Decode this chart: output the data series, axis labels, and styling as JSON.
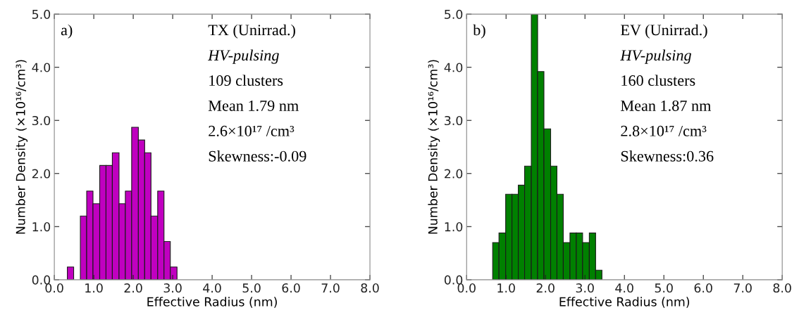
{
  "chart_data": [
    {
      "type": "histogram",
      "xlabel": "Effective Radius (nm)",
      "ylabel": "Number Density (×10¹⁶/cm³)",
      "color": "#c000c0",
      "bins": [
        0.33,
        0.49,
        0.66,
        0.82,
        0.98,
        1.15,
        1.31,
        1.47,
        1.64,
        1.8,
        1.96,
        2.13,
        2.29,
        2.45,
        2.62,
        2.78,
        2.94,
        3.11
      ],
      "values": [
        0.24,
        0,
        1.2,
        1.67,
        1.43,
        2.15,
        2.15,
        2.39,
        1.43,
        1.67,
        2.87,
        2.63,
        2.39,
        1.2,
        1.67,
        0.72,
        0.24
      ],
      "xlim": [
        0,
        8
      ],
      "ylim": [
        0,
        5
      ],
      "xticks": [
        {
          "value": 0,
          "label": "0.0"
        },
        {
          "value": 1,
          "label": "1.0"
        },
        {
          "value": 2,
          "label": "2.0"
        },
        {
          "value": 3,
          "label": "3.0"
        },
        {
          "value": 4,
          "label": "4.0"
        },
        {
          "value": 5,
          "label": "5.0"
        },
        {
          "value": 6,
          "label": "6.0"
        },
        {
          "value": 7,
          "label": "7.0"
        },
        {
          "value": 8,
          "label": "8.0"
        }
      ],
      "yticks": [
        {
          "value": 0,
          "label": "0.0"
        },
        {
          "value": 1,
          "label": "1.0"
        },
        {
          "value": 2,
          "label": "2.0"
        },
        {
          "value": 3,
          "label": "3.0"
        },
        {
          "value": 4,
          "label": "4.0"
        },
        {
          "value": 5,
          "label": "5.0"
        }
      ],
      "grid": false,
      "annotations": [
        "a)",
        "TX (Unirrad.)",
        "HV-pulsing",
        "109 clusters",
        "Mean 1.79 nm",
        "2.6×10¹⁷ /cm³",
        "Skewness:-0.09"
      ]
    },
    {
      "type": "histogram",
      "xlabel": "Effective Radius (nm)",
      "ylabel": "Number Density (×10¹⁶/cm³)",
      "color": "#008000",
      "bins": [
        0.66,
        0.82,
        0.99,
        1.15,
        1.31,
        1.47,
        1.64,
        1.8,
        1.96,
        2.13,
        2.29,
        2.45,
        2.62,
        2.78,
        2.94,
        3.11,
        3.27,
        3.43
      ],
      "values": [
        0.7,
        0.88,
        1.61,
        1.61,
        1.78,
        2.14,
        5.0,
        3.92,
        2.84,
        2.14,
        1.61,
        0.7,
        0.88,
        0.88,
        0.7,
        0.88,
        0.18
      ],
      "xlim": [
        0,
        8
      ],
      "ylim": [
        0,
        5
      ],
      "xticks": [
        {
          "value": 0,
          "label": "0.0"
        },
        {
          "value": 1,
          "label": "1.0"
        },
        {
          "value": 2,
          "label": "2.0"
        },
        {
          "value": 3,
          "label": "3.0"
        },
        {
          "value": 4,
          "label": "4.0"
        },
        {
          "value": 5,
          "label": "5.0"
        },
        {
          "value": 6,
          "label": "6.0"
        },
        {
          "value": 7,
          "label": "7.0"
        },
        {
          "value": 8,
          "label": "8.0"
        }
      ],
      "yticks": [
        {
          "value": 0,
          "label": "0.0"
        },
        {
          "value": 1,
          "label": "1.0"
        },
        {
          "value": 2,
          "label": "2.0"
        },
        {
          "value": 3,
          "label": "3.0"
        },
        {
          "value": 4,
          "label": "4.0"
        },
        {
          "value": 5,
          "label": "5.0"
        }
      ],
      "grid": false,
      "annotations": [
        "b)",
        "EV (Unirrad.)",
        "HV-pulsing",
        "160 clusters",
        "Mean 1.87 nm",
        "2.8×10¹⁷ /cm³",
        "Skewness:0.36"
      ]
    }
  ]
}
